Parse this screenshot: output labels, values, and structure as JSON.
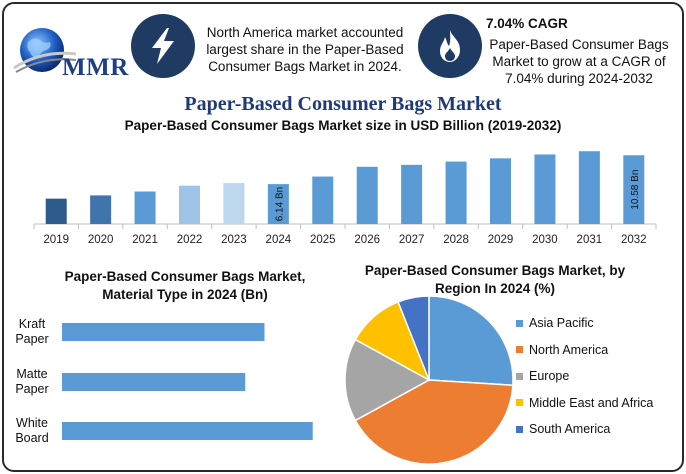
{
  "header": {
    "logo_text": "MMR",
    "info1_text": "North America market accounted largest share in the Paper-Based Consumer Bags Market in 2024.",
    "info2_title": "7.04% CAGR",
    "info2_text": "Paper-Based Consumer Bags Market to grow at a CAGR of 7.04% during 2024-2032",
    "icon1": "lightning-icon",
    "icon2": "flame-icon"
  },
  "colors": {
    "dark_blue": "#2e5a8c",
    "mid_blue": "#3f74ad",
    "bar_blue": "#5b9bd5",
    "light_blue": "#9dc3e6",
    "pale_blue": "#bdd7ee",
    "orange": "#ed7d31",
    "gray": "#a5a5a5",
    "yellow": "#ffc000",
    "navy": "#4472c4"
  },
  "chart_data": [
    {
      "type": "bar",
      "title": "Paper-Based Consumer Bags Market",
      "subtitle": "Paper-Based Consumer Bags Market size in USD Billion (2019-2032)",
      "categories": [
        "2019",
        "2020",
        "2021",
        "2022",
        "2023",
        "2024",
        "2025",
        "2026",
        "2027",
        "2028",
        "2029",
        "2030",
        "2031",
        "2032"
      ],
      "values": [
        3.9,
        4.4,
        5.0,
        5.9,
        6.3,
        6.14,
        7.3,
        8.8,
        9.1,
        9.6,
        10.1,
        10.7,
        11.2,
        10.58
      ],
      "data_labels": {
        "2024": "6.14 Bn",
        "2032": "10.58 Bn"
      },
      "bar_colors": [
        "#2e5a8c",
        "#3f74ad",
        "#5b9bd5",
        "#9dc3e6",
        "#bdd7ee",
        "#5b9bd5",
        "#5b9bd5",
        "#5b9bd5",
        "#5b9bd5",
        "#5b9bd5",
        "#5b9bd5",
        "#5b9bd5",
        "#5b9bd5",
        "#5b9bd5"
      ],
      "ylim": [
        0,
        12
      ],
      "grid": false
    },
    {
      "type": "bar",
      "orientation": "horizontal",
      "title": "Paper-Based Consumer Bags Market, Material Type in 2024 (Bn)",
      "categories": [
        "Kraft Paper",
        "Matte Paper",
        "White Board"
      ],
      "category_lines": [
        [
          "Kraft",
          "Paper"
        ],
        [
          "Matte",
          "Paper"
        ],
        [
          "White",
          "Board"
        ]
      ],
      "values": [
        2.1,
        1.9,
        2.6
      ],
      "xlim": [
        0,
        2.8
      ],
      "color": "#5b9bd5"
    },
    {
      "type": "pie",
      "title": "Paper-Based Consumer Bags Market, by Region In 2024 (%)",
      "labels": [
        "Asia Pacific",
        "North America",
        "Europe",
        "Middle East and Africa",
        "South America"
      ],
      "values": [
        26,
        41,
        16,
        11,
        6
      ],
      "colors": [
        "#5b9bd5",
        "#ed7d31",
        "#a5a5a5",
        "#ffc000",
        "#4472c4"
      ],
      "legend": "right"
    }
  ]
}
